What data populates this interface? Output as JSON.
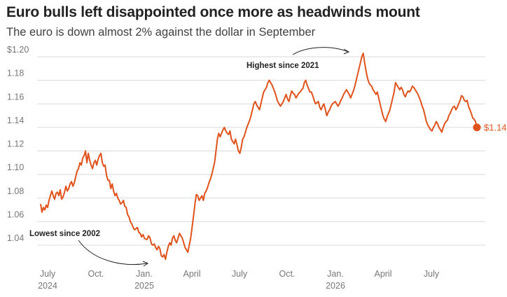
{
  "title": "Euro bulls left disappointed once more as headwinds mount",
  "subtitle": "The euro is down almost 2% against the dollar in September",
  "colors": {
    "line": "#e0521b",
    "grid": "#d9d9d9",
    "text": "#222222",
    "axis_text": "#777777"
  },
  "chart_data": {
    "type": "line",
    "title": "Euro bulls left disappointed once more as headwinds mount",
    "subtitle": "The euro is down almost 2% against the dollar in September",
    "xlabel": "",
    "ylabel": "",
    "ylim": [
      1.02,
      1.21
    ],
    "grid": "horizontal",
    "ytick_labels": [
      "$1.20",
      "1.18",
      "1.16",
      "1.14",
      "1.12",
      "1.10",
      "1.08",
      "1.06",
      "1.04"
    ],
    "ytick_values": [
      1.2,
      1.18,
      1.16,
      1.14,
      1.12,
      1.1,
      1.08,
      1.06,
      1.04
    ],
    "xtick_labels": [
      {
        "month": "July",
        "year": "2024"
      },
      {
        "month": "Oct.",
        "year": ""
      },
      {
        "month": "Jan.",
        "year": "2025"
      },
      {
        "month": "April",
        "year": ""
      },
      {
        "month": "July",
        "year": ""
      },
      {
        "month": "Oct.",
        "year": ""
      },
      {
        "month": "Jan.",
        "year": "2026"
      },
      {
        "month": "April",
        "year": ""
      },
      {
        "month": "July",
        "year": ""
      }
    ],
    "annotations": [
      {
        "text": "Highest since 2021"
      },
      {
        "text": "Lowest since 2002"
      }
    ],
    "end_label": "$1.14",
    "series": [
      {
        "values": [
          1.075,
          1.068,
          1.072,
          1.07,
          1.074,
          1.072,
          1.078,
          1.082,
          1.086,
          1.082,
          1.079,
          1.084,
          1.085,
          1.082,
          1.087,
          1.079,
          1.081,
          1.085,
          1.09,
          1.086,
          1.088,
          1.092,
          1.094,
          1.09,
          1.093,
          1.098,
          1.103,
          1.105,
          1.11,
          1.108,
          1.114,
          1.116,
          1.12,
          1.11,
          1.118,
          1.112,
          1.108,
          1.105,
          1.11,
          1.112,
          1.108,
          1.113,
          1.116,
          1.118,
          1.11,
          1.107,
          1.108,
          1.099,
          1.095,
          1.095,
          1.088,
          1.092,
          1.086,
          1.082,
          1.084,
          1.08,
          1.078,
          1.075,
          1.076,
          1.078,
          1.073,
          1.072,
          1.066,
          1.064,
          1.06,
          1.058,
          1.055,
          1.053,
          1.054,
          1.055,
          1.051,
          1.05,
          1.047,
          1.049,
          1.046,
          1.045,
          1.045,
          1.048,
          1.046,
          1.041,
          1.04,
          1.041,
          1.038,
          1.036,
          1.039,
          1.037,
          1.031,
          1.03,
          1.032,
          1.028,
          1.034,
          1.039,
          1.042,
          1.04,
          1.046,
          1.048,
          1.044,
          1.042,
          1.046,
          1.05,
          1.048,
          1.046,
          1.042,
          1.038,
          1.036,
          1.034,
          1.04,
          1.046,
          1.055,
          1.065,
          1.075,
          1.083,
          1.082,
          1.078,
          1.08,
          1.082,
          1.078,
          1.084,
          1.086,
          1.089,
          1.093,
          1.096,
          1.1,
          1.105,
          1.11,
          1.12,
          1.13,
          1.135,
          1.132,
          1.135,
          1.138,
          1.14,
          1.137,
          1.135,
          1.134,
          1.137,
          1.13,
          1.128,
          1.126,
          1.13,
          1.125,
          1.12,
          1.118,
          1.123,
          1.13,
          1.132,
          1.136,
          1.14,
          1.143,
          1.146,
          1.15,
          1.155,
          1.16,
          1.162,
          1.159,
          1.157,
          1.155,
          1.16,
          1.165,
          1.17,
          1.172,
          1.174,
          1.178,
          1.18,
          1.178,
          1.176,
          1.173,
          1.17,
          1.166,
          1.162,
          1.16,
          1.158,
          1.16,
          1.162,
          1.165,
          1.168,
          1.164,
          1.162,
          1.167,
          1.171,
          1.169,
          1.168,
          1.165,
          1.167,
          1.169,
          1.17,
          1.172,
          1.173,
          1.178,
          1.18,
          1.176,
          1.173,
          1.17,
          1.17,
          1.167,
          1.163,
          1.16,
          1.161,
          1.162,
          1.157,
          1.155,
          1.158,
          1.16,
          1.155,
          1.15,
          1.153,
          1.155,
          1.158,
          1.16,
          1.161,
          1.162,
          1.16,
          1.158,
          1.16,
          1.163,
          1.165,
          1.168,
          1.17,
          1.172,
          1.17,
          1.168,
          1.165,
          1.168,
          1.171,
          1.175,
          1.18,
          1.185,
          1.19,
          1.195,
          1.2,
          1.203,
          1.195,
          1.188,
          1.182,
          1.178,
          1.176,
          1.175,
          1.172,
          1.17,
          1.168,
          1.17,
          1.165,
          1.16,
          1.155,
          1.15,
          1.147,
          1.145,
          1.149,
          1.152,
          1.155,
          1.16,
          1.165,
          1.17,
          1.178,
          1.176,
          1.174,
          1.172,
          1.174,
          1.172,
          1.168,
          1.166,
          1.169,
          1.171,
          1.17,
          1.172,
          1.175,
          1.174,
          1.172,
          1.17,
          1.168,
          1.165,
          1.162,
          1.158,
          1.155,
          1.15,
          1.145,
          1.142,
          1.14,
          1.138,
          1.137,
          1.14,
          1.142,
          1.145,
          1.143,
          1.14,
          1.138,
          1.136,
          1.14,
          1.143,
          1.145,
          1.146,
          1.15,
          1.152,
          1.155,
          1.157,
          1.158,
          1.155,
          1.157,
          1.16,
          1.163,
          1.167,
          1.166,
          1.163,
          1.162,
          1.163,
          1.158,
          1.155,
          1.152,
          1.148,
          1.147,
          1.145,
          1.14
        ]
      }
    ]
  }
}
